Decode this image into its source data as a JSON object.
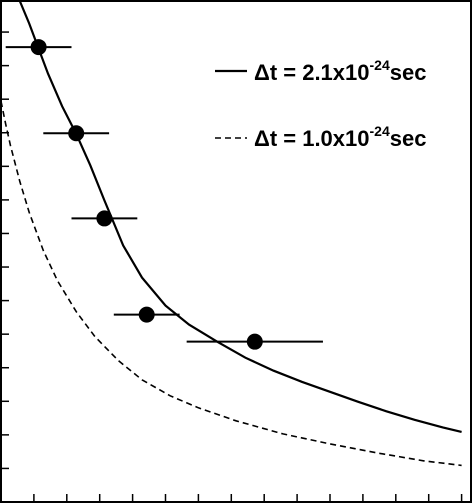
{
  "chart_data": {
    "type": "scatter",
    "title": "",
    "xlabel": "",
    "ylabel": "",
    "xlim": [
      0,
      1
    ],
    "ylim": [
      0,
      1
    ],
    "grid": false,
    "legend_placement": "top-right",
    "points": [
      {
        "x": 0.08,
        "y": 0.908,
        "xerr": 0.07
      },
      {
        "x": 0.16,
        "y": 0.736,
        "xerr": 0.07
      },
      {
        "x": 0.22,
        "y": 0.566,
        "xerr": 0.07
      },
      {
        "x": 0.31,
        "y": 0.374,
        "xerr": 0.07
      },
      {
        "x": 0.54,
        "y": 0.32,
        "xerr": 0.145
      }
    ],
    "series": [
      {
        "name_prefix": "Δt = 2.1x10",
        "name_exp": "-24",
        "name_suffix": "sec",
        "style": "solid",
        "x": [
          0.04,
          0.06,
          0.08,
          0.1,
          0.13,
          0.16,
          0.19,
          0.22,
          0.26,
          0.3,
          0.35,
          0.4,
          0.46,
          0.52,
          0.58,
          0.64,
          0.7,
          0.76,
          0.82,
          0.88,
          0.94,
          0.98
        ],
        "y": [
          1.0,
          0.955,
          0.905,
          0.855,
          0.79,
          0.735,
          0.672,
          0.602,
          0.512,
          0.448,
          0.392,
          0.354,
          0.32,
          0.288,
          0.262,
          0.24,
          0.22,
          0.2,
          0.181,
          0.164,
          0.149,
          0.14
        ]
      },
      {
        "name_prefix": "Δt = 1.0x10",
        "name_exp": "-24",
        "name_suffix": "sec",
        "style": "dashed",
        "x": [
          0.0,
          0.01,
          0.02,
          0.04,
          0.06,
          0.09,
          0.12,
          0.16,
          0.2,
          0.25,
          0.3,
          0.36,
          0.42,
          0.5,
          0.6,
          0.7,
          0.8,
          0.9,
          0.98
        ],
        "y": [
          0.8,
          0.754,
          0.712,
          0.64,
          0.578,
          0.502,
          0.442,
          0.38,
          0.33,
          0.282,
          0.244,
          0.212,
          0.188,
          0.162,
          0.136,
          0.116,
          0.098,
          0.082,
          0.073
        ]
      }
    ],
    "xticks": [
      0,
      0.07,
      0.14,
      0.21,
      0.28,
      0.35,
      0.42,
      0.49,
      0.56,
      0.63,
      0.7,
      0.77,
      0.84,
      0.91,
      0.98
    ],
    "yticks": [
      0,
      0.067,
      0.134,
      0.201,
      0.268,
      0.335,
      0.402,
      0.469,
      0.536,
      0.603,
      0.67,
      0.737,
      0.804,
      0.871,
      0.938
    ]
  }
}
